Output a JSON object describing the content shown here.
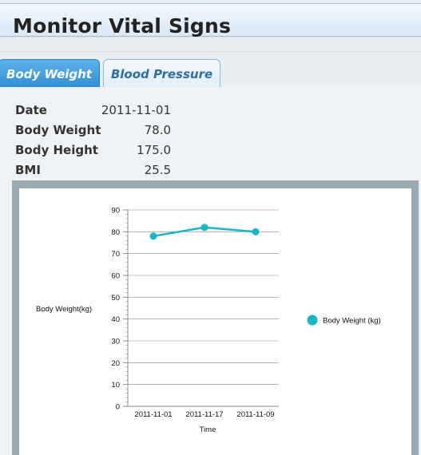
{
  "header": {
    "title": "Monitor Vital Signs"
  },
  "tabs": [
    {
      "label": "Body Weight",
      "active": true
    },
    {
      "label": "Blood Pressure",
      "active": false
    }
  ],
  "info": {
    "date_label": "Date",
    "date_value": "2011-11-01",
    "weight_label": "Body Weight",
    "weight_value": "78.0",
    "height_label": "Body Height",
    "height_value": "175.0",
    "bmi_label": "BMI",
    "bmi_value": "25.5"
  },
  "colors": {
    "series": "#1ab5c5",
    "tab_active": "#3a96d8"
  },
  "chart_data": {
    "type": "line",
    "categories": [
      "2011-11-01",
      "2011-11-17",
      "2011-11-09"
    ],
    "series": [
      {
        "name": "Body Weight (kg)",
        "values": [
          78,
          82,
          80
        ]
      }
    ],
    "xlabel": "Time",
    "ylabel": "Body Weight(kg)",
    "ylim": [
      0,
      90
    ],
    "yticks": [
      0,
      10,
      20,
      30,
      40,
      50,
      60,
      70,
      80,
      90
    ],
    "grid": true,
    "legend": "right"
  }
}
